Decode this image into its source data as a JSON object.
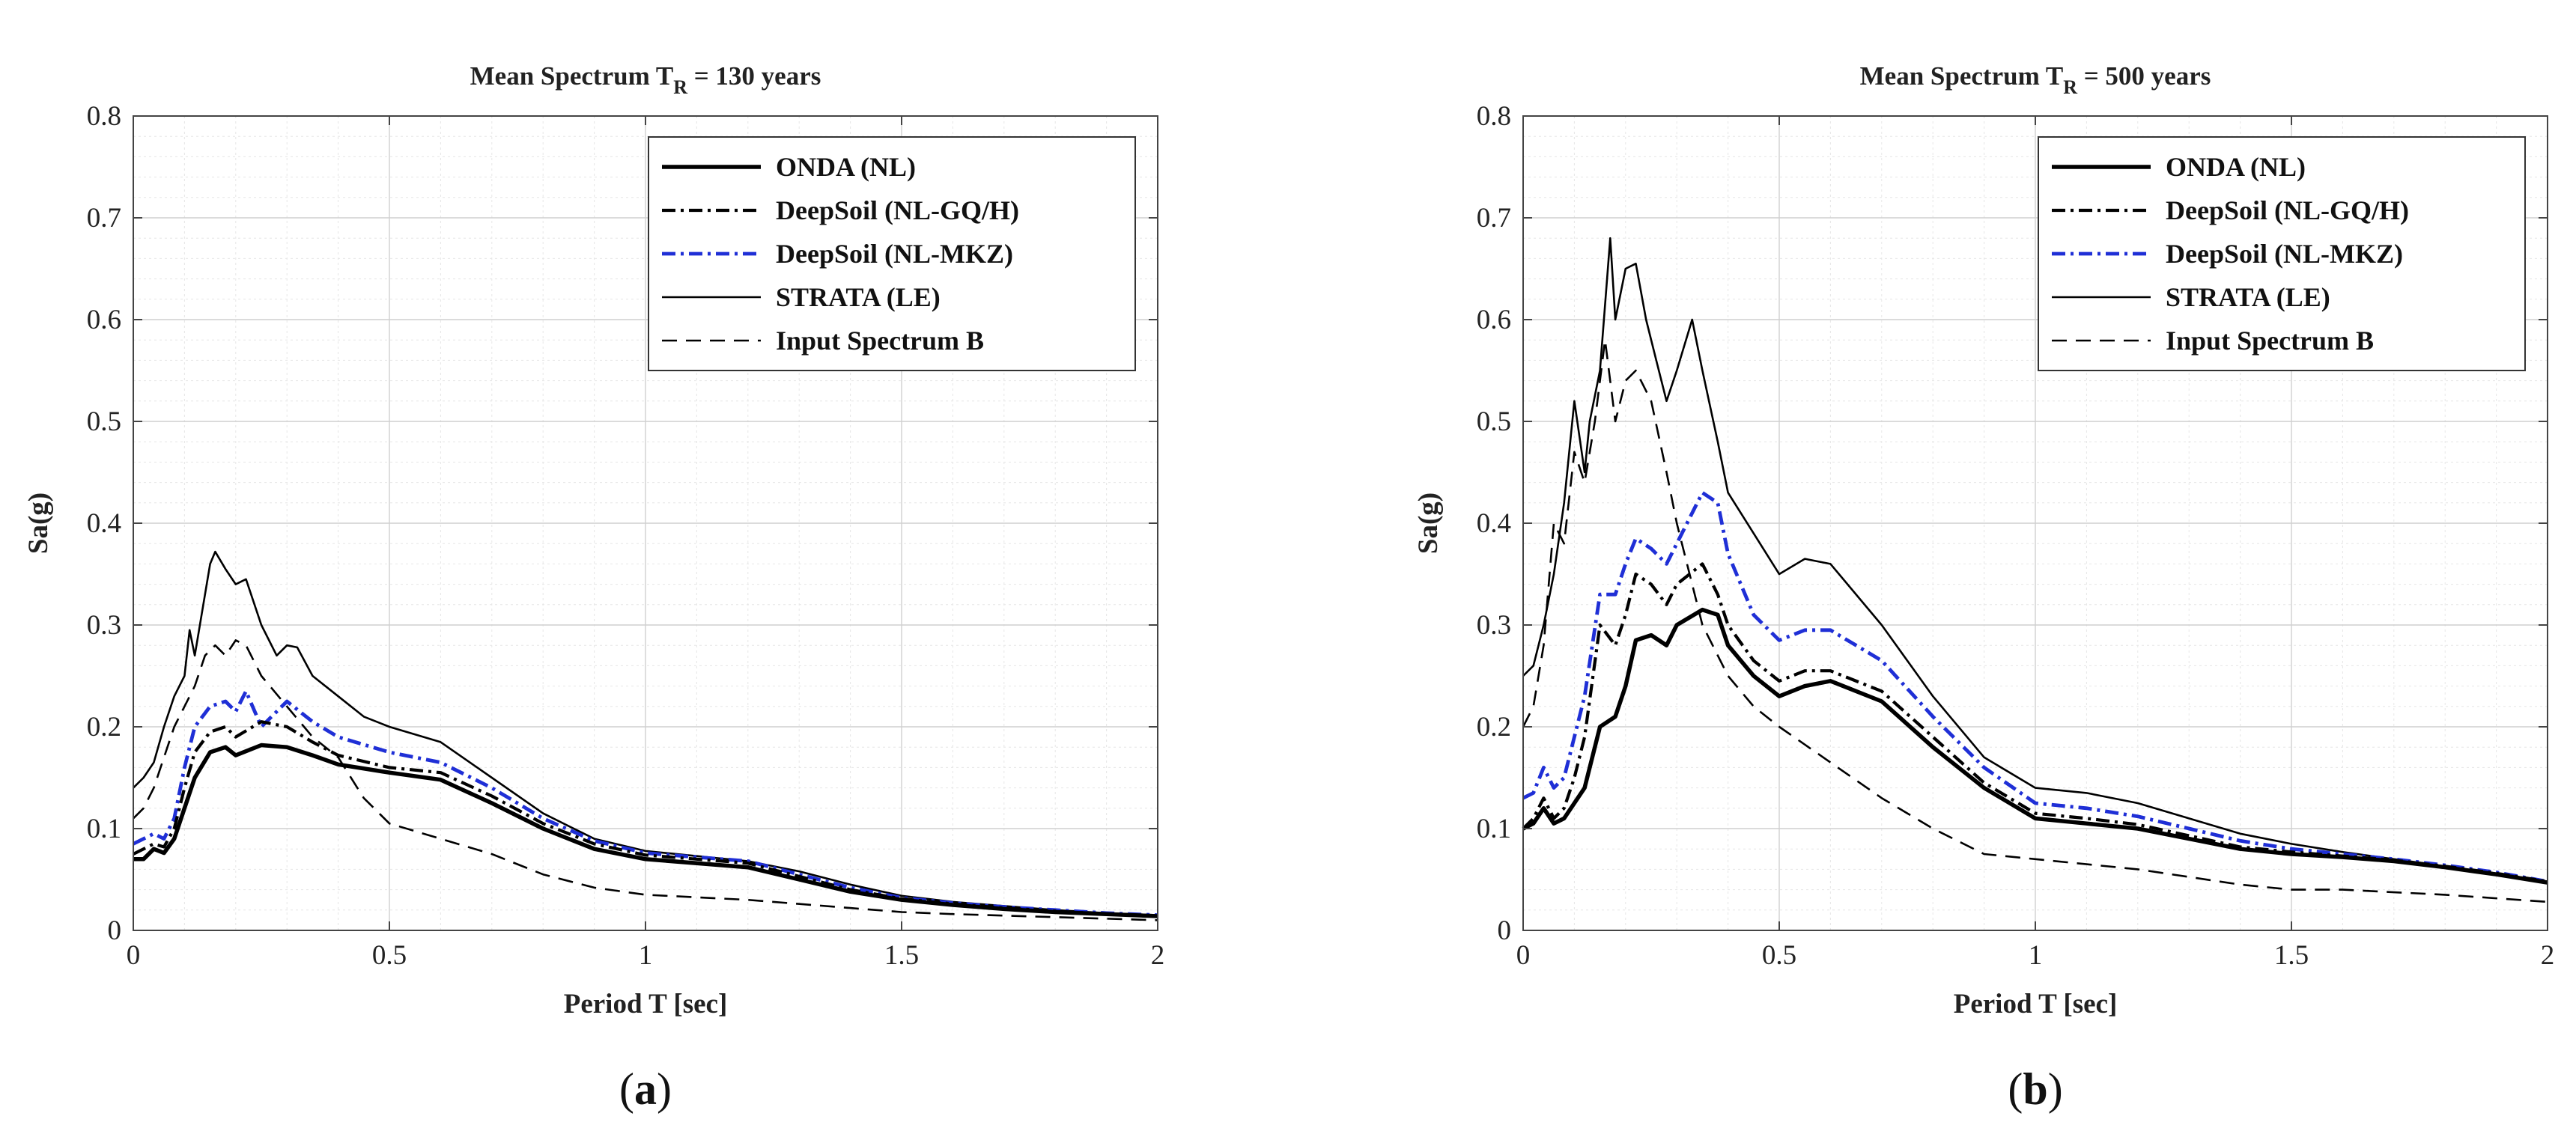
{
  "chart_data": [
    {
      "panel_label": "a",
      "type": "line",
      "title": "Mean Spectrum T",
      "title_sub": "R",
      "title_tail": " = 130 years",
      "xlabel": "Period T [sec]",
      "ylabel": "Sa(g)",
      "xlim": [
        0,
        2
      ],
      "ylim": [
        0,
        0.8
      ],
      "xticks": [
        0,
        0.5,
        1,
        1.5,
        2
      ],
      "xtick_labels": [
        "0",
        "0.5",
        "1",
        "1.5",
        "2"
      ],
      "yticks": [
        0,
        0.1,
        0.2,
        0.3,
        0.4,
        0.5,
        0.6,
        0.7,
        0.8
      ],
      "ytick_labels": [
        "0",
        "0.1",
        "0.2",
        "0.3",
        "0.4",
        "0.5",
        "0.6",
        "0.7",
        "0.8"
      ],
      "grid": true,
      "legend_position": "top-right",
      "series": [
        {
          "name": "ONDA (NL)",
          "color": "#000000",
          "style": "solid-thick",
          "x": [
            0,
            0.02,
            0.04,
            0.06,
            0.08,
            0.1,
            0.12,
            0.15,
            0.18,
            0.2,
            0.25,
            0.3,
            0.35,
            0.4,
            0.5,
            0.6,
            0.7,
            0.8,
            0.9,
            1.0,
            1.1,
            1.2,
            1.3,
            1.4,
            1.5,
            1.6,
            1.7,
            1.8,
            1.9,
            2.0
          ],
          "y": [
            0.07,
            0.07,
            0.08,
            0.076,
            0.09,
            0.12,
            0.15,
            0.175,
            0.18,
            0.172,
            0.182,
            0.18,
            0.172,
            0.163,
            0.155,
            0.148,
            0.125,
            0.1,
            0.08,
            0.07,
            0.066,
            0.062,
            0.05,
            0.038,
            0.03,
            0.025,
            0.021,
            0.018,
            0.016,
            0.014
          ]
        },
        {
          "name": "DeepSoil (NL-GQ/H)",
          "color": "#000000",
          "style": "dashdot",
          "x": [
            0,
            0.02,
            0.04,
            0.06,
            0.08,
            0.1,
            0.12,
            0.15,
            0.18,
            0.2,
            0.25,
            0.3,
            0.35,
            0.4,
            0.5,
            0.6,
            0.7,
            0.8,
            0.9,
            1.0,
            1.1,
            1.2,
            1.3,
            1.4,
            1.5,
            1.6,
            1.7,
            1.8,
            1.9,
            2.0
          ],
          "y": [
            0.075,
            0.08,
            0.085,
            0.082,
            0.1,
            0.14,
            0.175,
            0.195,
            0.2,
            0.19,
            0.205,
            0.2,
            0.185,
            0.172,
            0.16,
            0.155,
            0.132,
            0.105,
            0.085,
            0.074,
            0.07,
            0.066,
            0.053,
            0.04,
            0.031,
            0.026,
            0.022,
            0.019,
            0.016,
            0.014
          ]
        },
        {
          "name": "DeepSoil (NL-MKZ)",
          "color": "#1f2fd6",
          "style": "dashdot-blue",
          "x": [
            0,
            0.02,
            0.04,
            0.06,
            0.08,
            0.1,
            0.12,
            0.15,
            0.18,
            0.2,
            0.22,
            0.25,
            0.3,
            0.35,
            0.4,
            0.5,
            0.6,
            0.7,
            0.8,
            0.9,
            1.0,
            1.1,
            1.2,
            1.3,
            1.4,
            1.5,
            1.6,
            1.7,
            1.8,
            1.9,
            2.0
          ],
          "y": [
            0.085,
            0.09,
            0.095,
            0.09,
            0.11,
            0.16,
            0.2,
            0.22,
            0.225,
            0.215,
            0.235,
            0.2,
            0.225,
            0.205,
            0.19,
            0.175,
            0.165,
            0.14,
            0.11,
            0.088,
            0.076,
            0.072,
            0.068,
            0.055,
            0.042,
            0.032,
            0.027,
            0.023,
            0.02,
            0.017,
            0.015
          ]
        },
        {
          "name": "STRATA (LE)",
          "color": "#000000",
          "style": "solid-thin",
          "x": [
            0,
            0.02,
            0.04,
            0.06,
            0.08,
            0.1,
            0.11,
            0.12,
            0.15,
            0.16,
            0.18,
            0.2,
            0.22,
            0.25,
            0.28,
            0.3,
            0.32,
            0.35,
            0.4,
            0.45,
            0.5,
            0.6,
            0.7,
            0.8,
            0.9,
            1.0,
            1.1,
            1.2,
            1.3,
            1.4,
            1.5,
            1.6,
            1.7,
            1.8,
            1.9,
            2.0
          ],
          "y": [
            0.14,
            0.15,
            0.165,
            0.2,
            0.23,
            0.25,
            0.295,
            0.27,
            0.36,
            0.372,
            0.355,
            0.34,
            0.345,
            0.3,
            0.27,
            0.28,
            0.278,
            0.25,
            0.23,
            0.21,
            0.2,
            0.185,
            0.15,
            0.115,
            0.09,
            0.078,
            0.073,
            0.068,
            0.058,
            0.045,
            0.034,
            0.028,
            0.024,
            0.02,
            0.017,
            0.015
          ]
        },
        {
          "name": "Input Spectrum B",
          "color": "#000000",
          "style": "dashed",
          "x": [
            0,
            0.02,
            0.04,
            0.06,
            0.08,
            0.1,
            0.12,
            0.14,
            0.16,
            0.18,
            0.2,
            0.22,
            0.25,
            0.3,
            0.35,
            0.4,
            0.45,
            0.5,
            0.6,
            0.7,
            0.8,
            0.9,
            1.0,
            1.2,
            1.4,
            1.5,
            1.6,
            1.8,
            2.0
          ],
          "y": [
            0.11,
            0.12,
            0.14,
            0.17,
            0.2,
            0.22,
            0.24,
            0.27,
            0.28,
            0.27,
            0.285,
            0.28,
            0.25,
            0.22,
            0.19,
            0.17,
            0.13,
            0.105,
            0.09,
            0.075,
            0.055,
            0.042,
            0.035,
            0.03,
            0.022,
            0.018,
            0.016,
            0.013,
            0.01
          ]
        }
      ]
    },
    {
      "panel_label": "b",
      "type": "line",
      "title": "Mean Spectrum T",
      "title_sub": "R",
      "title_tail": " = 500 years",
      "xlabel": "Period T [sec]",
      "ylabel": "Sa(g)",
      "xlim": [
        0,
        2
      ],
      "ylim": [
        0,
        0.8
      ],
      "xticks": [
        0,
        0.5,
        1,
        1.5,
        2
      ],
      "xtick_labels": [
        "0",
        "0.5",
        "1",
        "1.5",
        "2"
      ],
      "yticks": [
        0,
        0.1,
        0.2,
        0.3,
        0.4,
        0.5,
        0.6,
        0.7,
        0.8
      ],
      "ytick_labels": [
        "0",
        "0.1",
        "0.2",
        "0.3",
        "0.4",
        "0.5",
        "0.6",
        "0.7",
        "0.8"
      ],
      "grid": true,
      "legend_position": "top-right",
      "series": [
        {
          "name": "ONDA (NL)",
          "color": "#000000",
          "style": "solid-thick",
          "x": [
            0,
            0.02,
            0.04,
            0.06,
            0.08,
            0.1,
            0.12,
            0.15,
            0.18,
            0.2,
            0.22,
            0.25,
            0.28,
            0.3,
            0.35,
            0.38,
            0.4,
            0.45,
            0.5,
            0.55,
            0.6,
            0.7,
            0.8,
            0.9,
            1.0,
            1.1,
            1.2,
            1.3,
            1.4,
            1.5,
            1.6,
            1.7,
            1.8,
            1.9,
            2.0
          ],
          "y": [
            0.1,
            0.105,
            0.12,
            0.105,
            0.11,
            0.125,
            0.14,
            0.2,
            0.21,
            0.24,
            0.285,
            0.29,
            0.28,
            0.3,
            0.315,
            0.31,
            0.28,
            0.25,
            0.23,
            0.24,
            0.245,
            0.225,
            0.18,
            0.14,
            0.11,
            0.105,
            0.1,
            0.09,
            0.08,
            0.075,
            0.072,
            0.068,
            0.062,
            0.055,
            0.047
          ]
        },
        {
          "name": "DeepSoil (NL-GQ/H)",
          "color": "#000000",
          "style": "dashdot",
          "x": [
            0,
            0.02,
            0.04,
            0.06,
            0.08,
            0.1,
            0.12,
            0.15,
            0.18,
            0.2,
            0.22,
            0.25,
            0.28,
            0.3,
            0.35,
            0.38,
            0.4,
            0.45,
            0.5,
            0.55,
            0.6,
            0.7,
            0.8,
            0.9,
            1.0,
            1.1,
            1.2,
            1.3,
            1.4,
            1.5,
            1.6,
            1.7,
            1.8,
            1.9,
            2.0
          ],
          "y": [
            0.1,
            0.11,
            0.13,
            0.11,
            0.12,
            0.15,
            0.19,
            0.3,
            0.28,
            0.31,
            0.35,
            0.34,
            0.32,
            0.34,
            0.36,
            0.33,
            0.3,
            0.265,
            0.245,
            0.255,
            0.255,
            0.235,
            0.19,
            0.145,
            0.115,
            0.11,
            0.104,
            0.093,
            0.082,
            0.077,
            0.073,
            0.069,
            0.063,
            0.056,
            0.048
          ]
        },
        {
          "name": "DeepSoil (NL-MKZ)",
          "color": "#1f2fd6",
          "style": "dashdot-blue",
          "x": [
            0,
            0.02,
            0.04,
            0.06,
            0.08,
            0.1,
            0.12,
            0.15,
            0.18,
            0.2,
            0.22,
            0.25,
            0.28,
            0.3,
            0.35,
            0.38,
            0.4,
            0.45,
            0.5,
            0.55,
            0.6,
            0.7,
            0.8,
            0.9,
            1.0,
            1.1,
            1.2,
            1.3,
            1.4,
            1.5,
            1.6,
            1.7,
            1.8,
            1.9,
            2.0
          ],
          "y": [
            0.13,
            0.135,
            0.16,
            0.14,
            0.15,
            0.19,
            0.23,
            0.33,
            0.33,
            0.36,
            0.385,
            0.375,
            0.36,
            0.38,
            0.43,
            0.42,
            0.37,
            0.31,
            0.285,
            0.295,
            0.295,
            0.265,
            0.21,
            0.16,
            0.125,
            0.12,
            0.112,
            0.1,
            0.088,
            0.08,
            0.075,
            0.07,
            0.064,
            0.057,
            0.048
          ]
        },
        {
          "name": "STRATA (LE)",
          "color": "#000000",
          "style": "solid-thin",
          "x": [
            0,
            0.02,
            0.04,
            0.06,
            0.08,
            0.1,
            0.12,
            0.13,
            0.15,
            0.17,
            0.18,
            0.2,
            0.22,
            0.24,
            0.26,
            0.28,
            0.3,
            0.33,
            0.35,
            0.38,
            0.4,
            0.45,
            0.5,
            0.55,
            0.6,
            0.7,
            0.8,
            0.9,
            1.0,
            1.1,
            1.2,
            1.3,
            1.4,
            1.5,
            1.6,
            1.7,
            1.8,
            1.9,
            2.0
          ],
          "y": [
            0.25,
            0.26,
            0.3,
            0.35,
            0.42,
            0.52,
            0.45,
            0.5,
            0.55,
            0.68,
            0.6,
            0.65,
            0.655,
            0.6,
            0.56,
            0.52,
            0.55,
            0.6,
            0.55,
            0.48,
            0.43,
            0.39,
            0.35,
            0.365,
            0.36,
            0.3,
            0.23,
            0.17,
            0.14,
            0.135,
            0.125,
            0.11,
            0.095,
            0.085,
            0.077,
            0.07,
            0.063,
            0.056,
            0.048
          ]
        },
        {
          "name": "Input Spectrum B",
          "color": "#000000",
          "style": "dashed",
          "x": [
            0,
            0.02,
            0.04,
            0.06,
            0.08,
            0.1,
            0.12,
            0.14,
            0.16,
            0.18,
            0.2,
            0.22,
            0.25,
            0.28,
            0.3,
            0.35,
            0.4,
            0.45,
            0.5,
            0.6,
            0.7,
            0.8,
            0.9,
            1.0,
            1.1,
            1.2,
            1.4,
            1.5,
            1.6,
            1.8,
            2.0
          ],
          "y": [
            0.2,
            0.22,
            0.28,
            0.4,
            0.38,
            0.47,
            0.44,
            0.5,
            0.58,
            0.5,
            0.54,
            0.55,
            0.52,
            0.45,
            0.4,
            0.3,
            0.25,
            0.22,
            0.2,
            0.165,
            0.13,
            0.1,
            0.075,
            0.07,
            0.065,
            0.06,
            0.045,
            0.04,
            0.04,
            0.035,
            0.028
          ]
        }
      ]
    }
  ]
}
